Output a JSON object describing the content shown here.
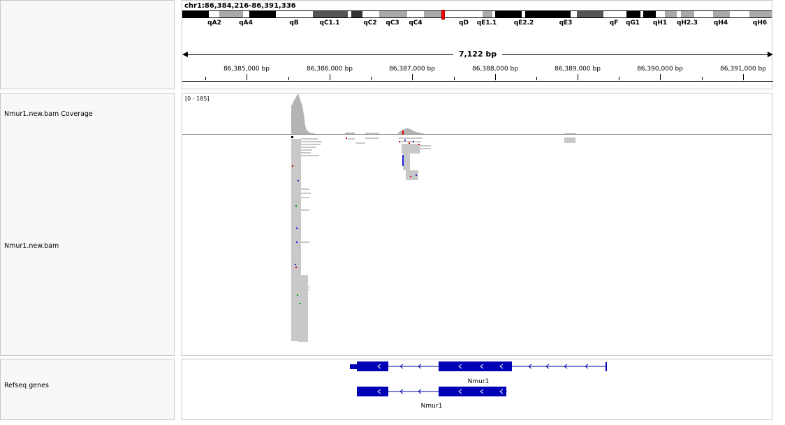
{
  "header": {
    "locus": "chr1:86,384,216-86,391,336",
    "span_label": "7,122 bp",
    "bands": [
      {
        "label": "qA2",
        "stain": "black"
      },
      {
        "label": "qA4",
        "stain": "gray"
      },
      {
        "label": "qB",
        "stain": "black"
      },
      {
        "label": "qC1.1",
        "stain": "white"
      },
      {
        "label": "qC2",
        "stain": "darkgray"
      },
      {
        "label": "qC3",
        "stain": "black"
      },
      {
        "label": "qC4",
        "stain": "gray"
      },
      {
        "label": "qD",
        "stain": "white"
      },
      {
        "label": "qE1.1",
        "stain": "gray"
      },
      {
        "label": "qE2.2",
        "stain": "black"
      },
      {
        "label": "qE3",
        "stain": "darkgray"
      },
      {
        "label": "qF",
        "stain": "white"
      },
      {
        "label": "qG1",
        "stain": "black"
      },
      {
        "label": "qH1",
        "stain": "white"
      },
      {
        "label": "qH2.3",
        "stain": "gray"
      },
      {
        "label": "qH4",
        "stain": "gray"
      },
      {
        "label": "qH6",
        "stain": "gray"
      }
    ],
    "ticks": [
      "86,385,000 bp",
      "86,386,000 bp",
      "86,387,000 bp",
      "86,388,000 bp",
      "86,389,000 bp",
      "86,390,000 bp",
      "86,391,000 bp"
    ]
  },
  "tracks": {
    "coverage_label": "Nmur1.new.bam Coverage",
    "coverage_range": "[0 - 185]",
    "bam_label": "Nmur1.new.bam",
    "refseq_label": "Refseq genes"
  },
  "genes": [
    {
      "name": "Nmur1"
    },
    {
      "name": "Nmur1"
    }
  ],
  "colors": {
    "gene": "#0000b4",
    "coverage": "#b4b4b4",
    "read": "#c8c8c8",
    "centromere": "#ff0000"
  }
}
